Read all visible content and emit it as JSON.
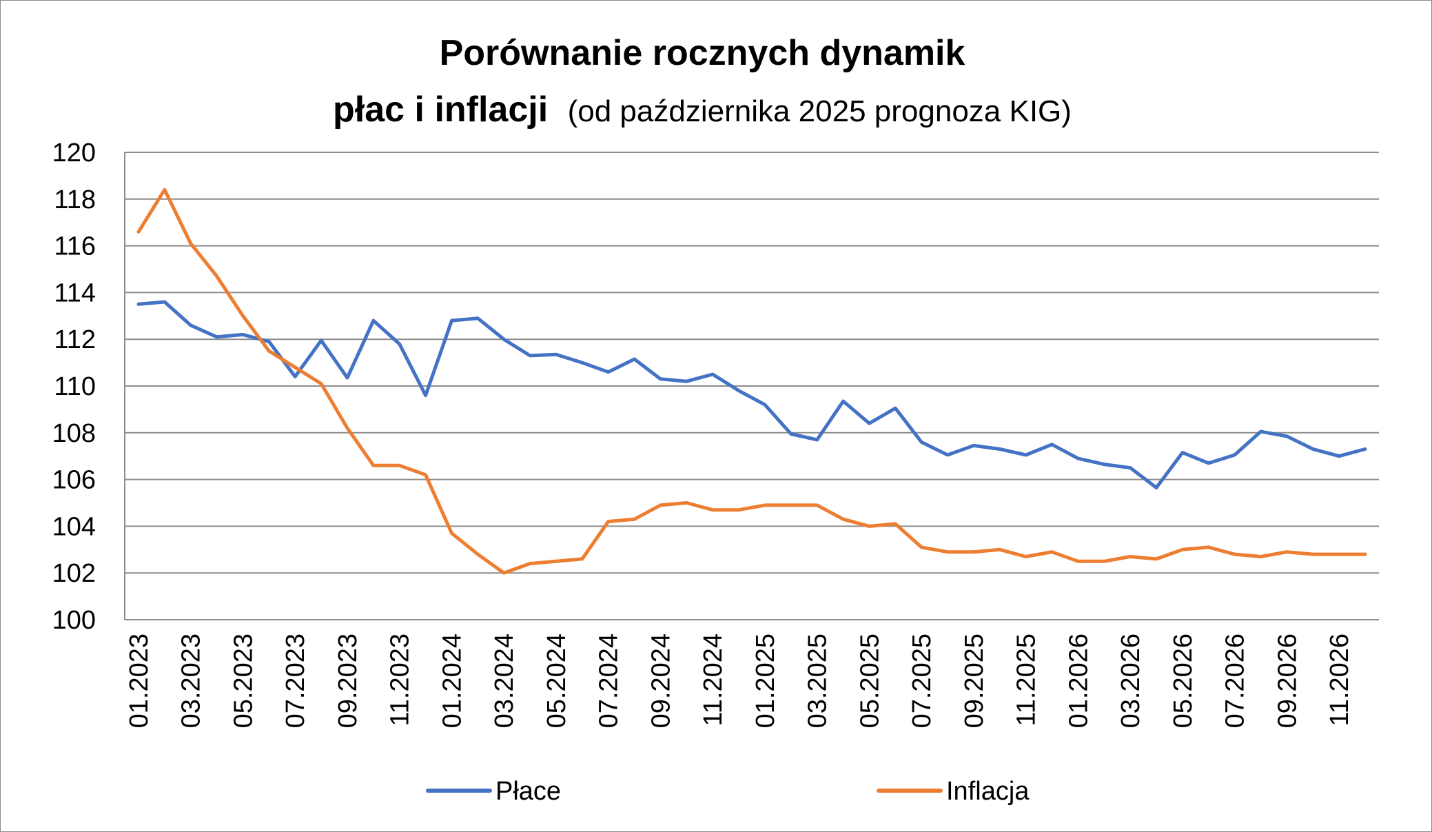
{
  "chart_data": {
    "type": "line",
    "title_line1": "Porównanie rocznych dynamik",
    "title_line2_bold": "płac i inflacji",
    "title_line2_normal": "(od października 2025 prognoza KIG)",
    "xlabel": "",
    "ylabel": "",
    "ylim": [
      100,
      120
    ],
    "yticks": [
      "100",
      "102",
      "104",
      "106",
      "108",
      "110",
      "112",
      "114",
      "116",
      "118",
      "120"
    ],
    "grid": true,
    "legend_position": "bottom",
    "categories": [
      "01.2023",
      "02.2023",
      "03.2023",
      "04.2023",
      "05.2023",
      "06.2023",
      "07.2023",
      "08.2023",
      "09.2023",
      "10.2023",
      "11.2023",
      "12.2023",
      "01.2024",
      "02.2024",
      "03.2024",
      "04.2024",
      "05.2024",
      "06.2024",
      "07.2024",
      "08.2024",
      "09.2024",
      "10.2024",
      "11.2024",
      "12.2024",
      "01.2025",
      "02.2025",
      "03.2025",
      "04.2025",
      "05.2025",
      "06.2025",
      "07.2025",
      "08.2025",
      "09.2025",
      "10.2025",
      "11.2025",
      "12.2025",
      "01.2026",
      "02.2026",
      "03.2026",
      "04.2026",
      "05.2026",
      "06.2026",
      "07.2026",
      "08.2026",
      "09.2026",
      "10.2026",
      "11.2026",
      "12.2026"
    ],
    "xtick_labels": [
      "01.2023",
      "03.2023",
      "05.2023",
      "07.2023",
      "09.2023",
      "11.2023",
      "01.2024",
      "03.2024",
      "05.2024",
      "07.2024",
      "09.2024",
      "11.2024",
      "01.2025",
      "03.2025",
      "05.2025",
      "07.2025",
      "09.2025",
      "11.2025",
      "01.2026",
      "03.2026",
      "05.2026",
      "07.2026",
      "09.2026",
      "11.2026"
    ],
    "series": [
      {
        "name": "Płace",
        "color": "#4472c4",
        "values": [
          113.5,
          113.6,
          112.6,
          112.1,
          112.2,
          111.9,
          110.4,
          111.95,
          110.35,
          112.8,
          111.8,
          109.6,
          112.8,
          112.9,
          112.0,
          111.3,
          111.35,
          111.0,
          110.6,
          111.15,
          110.3,
          110.2,
          110.5,
          109.8,
          109.2,
          107.95,
          107.7,
          109.35,
          108.4,
          109.05,
          107.6,
          107.05,
          107.45,
          107.3,
          107.05,
          107.5,
          106.9,
          106.65,
          106.5,
          105.65,
          107.15,
          106.7,
          107.05,
          108.05,
          107.85,
          107.3,
          107.0,
          107.3
        ]
      },
      {
        "name": "Inflacja",
        "color": "#ed7d31",
        "values": [
          116.6,
          118.4,
          116.1,
          114.7,
          113.0,
          111.5,
          110.8,
          110.1,
          108.2,
          106.6,
          106.6,
          106.2,
          103.7,
          102.8,
          102.0,
          102.4,
          102.5,
          102.6,
          104.2,
          104.3,
          104.9,
          105.0,
          104.7,
          104.7,
          104.9,
          104.9,
          104.9,
          104.3,
          104.0,
          104.1,
          103.1,
          102.9,
          102.9,
          103.0,
          102.7,
          102.9,
          102.5,
          102.5,
          102.7,
          102.6,
          103.0,
          103.1,
          102.8,
          102.7,
          102.9,
          102.8,
          102.8,
          102.8
        ]
      }
    ]
  }
}
